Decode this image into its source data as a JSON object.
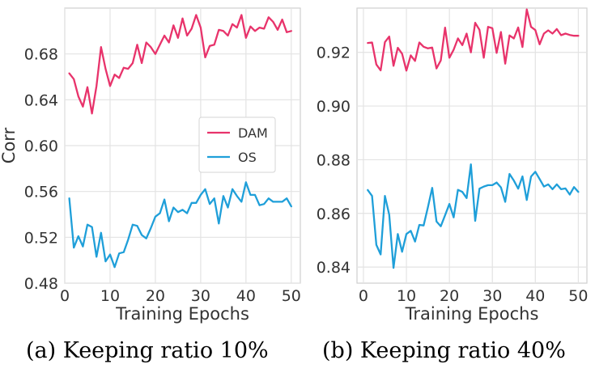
{
  "chart_data": [
    {
      "type": "line",
      "caption": "(a) Keeping ratio 10%",
      "xlabel": "Training Epochs",
      "ylabel": "Corr",
      "xlim": [
        0,
        52
      ],
      "ylim": [
        0.48,
        0.72
      ],
      "xticks": [
        0,
        10,
        20,
        30,
        40,
        50
      ],
      "yticks": [
        0.48,
        0.52,
        0.56,
        0.6,
        0.64,
        0.68
      ],
      "ytick_labels": [
        "0.48",
        "0.52",
        "0.56",
        "0.60",
        "0.64",
        "0.68"
      ],
      "grid": true,
      "legend": {
        "placement": "center-right",
        "entries": [
          "DAM",
          "OS"
        ]
      },
      "x": [
        1,
        2,
        3,
        4,
        5,
        6,
        7,
        8,
        9,
        10,
        11,
        12,
        13,
        14,
        15,
        16,
        17,
        18,
        19,
        20,
        21,
        22,
        23,
        24,
        25,
        26,
        27,
        28,
        29,
        30,
        31,
        32,
        33,
        34,
        35,
        36,
        37,
        38,
        39,
        40,
        41,
        42,
        43,
        44,
        45,
        46,
        47,
        48,
        49,
        50
      ],
      "series": [
        {
          "name": "DAM",
          "color": "#e8336b",
          "values": [
            0.663,
            0.658,
            0.643,
            0.634,
            0.651,
            0.628,
            0.652,
            0.686,
            0.667,
            0.652,
            0.662,
            0.659,
            0.668,
            0.667,
            0.672,
            0.688,
            0.672,
            0.69,
            0.686,
            0.68,
            0.688,
            0.696,
            0.69,
            0.705,
            0.694,
            0.711,
            0.696,
            0.702,
            0.714,
            0.703,
            0.677,
            0.687,
            0.688,
            0.701,
            0.7,
            0.696,
            0.706,
            0.703,
            0.714,
            0.694,
            0.704,
            0.7,
            0.703,
            0.702,
            0.712,
            0.708,
            0.701,
            0.71,
            0.699,
            0.7
          ]
        },
        {
          "name": "OS",
          "color": "#1f9fd9",
          "values": [
            0.554,
            0.511,
            0.521,
            0.512,
            0.531,
            0.529,
            0.503,
            0.524,
            0.499,
            0.505,
            0.494,
            0.506,
            0.507,
            0.518,
            0.531,
            0.53,
            0.522,
            0.519,
            0.528,
            0.538,
            0.541,
            0.553,
            0.534,
            0.546,
            0.542,
            0.544,
            0.541,
            0.55,
            0.55,
            0.557,
            0.562,
            0.549,
            0.554,
            0.532,
            0.556,
            0.546,
            0.562,
            0.556,
            0.551,
            0.568,
            0.557,
            0.557,
            0.548,
            0.549,
            0.554,
            0.551,
            0.551,
            0.551,
            0.554,
            0.547
          ]
        }
      ]
    },
    {
      "type": "line",
      "caption": "(b) Keeping ratio 40%",
      "xlabel": "Training Epochs",
      "ylabel": "",
      "xlim": [
        -1.5,
        52
      ],
      "ylim": [
        0.834,
        0.9365
      ],
      "xticks": [
        0,
        10,
        20,
        30,
        40,
        50
      ],
      "yticks": [
        0.84,
        0.86,
        0.88,
        0.9,
        0.92
      ],
      "ytick_labels": [
        "0.84",
        "0.86",
        "0.88",
        "0.90",
        "0.92"
      ],
      "grid": true,
      "x": [
        1,
        2,
        3,
        4,
        5,
        6,
        7,
        8,
        9,
        10,
        11,
        12,
        13,
        14,
        15,
        16,
        17,
        18,
        19,
        20,
        21,
        22,
        23,
        24,
        25,
        26,
        27,
        28,
        29,
        30,
        31,
        32,
        33,
        34,
        35,
        36,
        37,
        38,
        39,
        40,
        41,
        42,
        43,
        44,
        45,
        46,
        47,
        48,
        49,
        50
      ],
      "series": [
        {
          "name": "DAM",
          "color": "#e8336b",
          "values": [
            0.9235,
            0.9237,
            0.9155,
            0.9133,
            0.9238,
            0.9259,
            0.915,
            0.9217,
            0.9195,
            0.9132,
            0.9189,
            0.9168,
            0.9237,
            0.9221,
            0.9215,
            0.9218,
            0.914,
            0.917,
            0.9292,
            0.918,
            0.921,
            0.9252,
            0.9227,
            0.927,
            0.92,
            0.931,
            0.9284,
            0.918,
            0.9295,
            0.929,
            0.9198,
            0.9276,
            0.9158,
            0.9263,
            0.9252,
            0.9293,
            0.922,
            0.936,
            0.9295,
            0.9283,
            0.923,
            0.927,
            0.9282,
            0.927,
            0.9287,
            0.9264,
            0.927,
            0.9265,
            0.9262,
            0.9262
          ]
        },
        {
          "name": "OS",
          "color": "#1f9fd9",
          "values": [
            0.8687,
            0.8665,
            0.8483,
            0.8447,
            0.8665,
            0.8595,
            0.8397,
            0.8523,
            0.8457,
            0.8523,
            0.8535,
            0.8495,
            0.8557,
            0.8555,
            0.8623,
            0.8695,
            0.857,
            0.8552,
            0.8593,
            0.8635,
            0.8585,
            0.8688,
            0.868,
            0.8657,
            0.8783,
            0.8572,
            0.8692,
            0.87,
            0.8705,
            0.8705,
            0.8715,
            0.8697,
            0.8643,
            0.8747,
            0.8722,
            0.8692,
            0.8738,
            0.865,
            0.8737,
            0.8755,
            0.8728,
            0.87,
            0.8708,
            0.869,
            0.8708,
            0.869,
            0.8693,
            0.867,
            0.8698,
            0.868
          ]
        }
      ]
    }
  ]
}
